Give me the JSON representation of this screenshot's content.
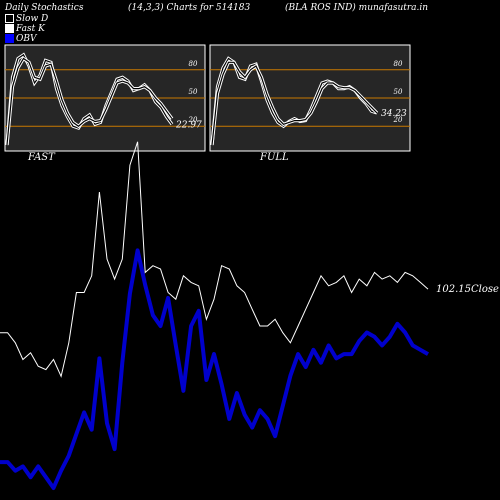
{
  "header": {
    "left": "Daily Stochastics",
    "center": "(14,3,3) Charts for 514183",
    "right": "(BLA ROS IND) munafasutra.in"
  },
  "legend": [
    {
      "label": "Slow  D",
      "color": "#000000"
    },
    {
      "label": "Fast K",
      "color": "#ffffff"
    },
    {
      "label": "OBV",
      "color": "#0000ff"
    }
  ],
  "colors": {
    "background": "#000000",
    "obv": "#0000cc",
    "close": "#ffffff",
    "panel_bg": "#262626",
    "level_line": "#c87800"
  },
  "chart_data": [
    {
      "type": "line",
      "title": "FAST",
      "ylim": [
        0,
        100
      ],
      "levels": [
        80,
        50,
        20
      ],
      "level_labels": [
        "80",
        "50",
        "20"
      ],
      "last_value_label": "22.97",
      "series": [
        {
          "values": [
            0,
            72,
            92,
            96,
            84,
            66,
            74,
            90,
            88,
            60,
            42,
            30,
            20,
            18,
            28,
            32,
            22,
            24,
            42,
            56,
            70,
            72,
            68,
            58,
            60,
            64,
            58,
            46,
            40,
            30,
            22
          ]
        },
        {
          "values": [
            0,
            62,
            82,
            92,
            88,
            72,
            70,
            84,
            86,
            68,
            48,
            34,
            24,
            20,
            25,
            28,
            25,
            26,
            38,
            52,
            66,
            68,
            66,
            60,
            60,
            62,
            58,
            50,
            44,
            36,
            28
          ]
        }
      ]
    },
    {
      "type": "line",
      "title": "FULL",
      "ylim": [
        0,
        100
      ],
      "levels": [
        80,
        50,
        20
      ],
      "level_labels": [
        "80",
        "50",
        "20"
      ],
      "last_value_label": "34.23",
      "series": [
        {
          "values": [
            0,
            62,
            82,
            92,
            88,
            72,
            70,
            84,
            86,
            68,
            48,
            34,
            24,
            20,
            25,
            28,
            25,
            26,
            38,
            52,
            66,
            68,
            66,
            60,
            60,
            62,
            58,
            50,
            44,
            36,
            34
          ]
        },
        {
          "values": [
            0,
            55,
            75,
            88,
            88,
            78,
            72,
            80,
            84,
            72,
            54,
            40,
            28,
            22,
            24,
            26,
            26,
            27,
            34,
            46,
            60,
            66,
            66,
            62,
            61,
            61,
            58,
            52,
            46,
            40,
            34
          ]
        }
      ]
    },
    {
      "type": "line",
      "title": "",
      "close_label": "102.15Close",
      "series": [
        {
          "name": "Close",
          "values": [
            38,
            38,
            35,
            30,
            32,
            28,
            27,
            30,
            25,
            35,
            50,
            50,
            55,
            80,
            60,
            54,
            60,
            88,
            95,
            56,
            58,
            57,
            50,
            48,
            55,
            53,
            52,
            42,
            48,
            58,
            57,
            52,
            50,
            45,
            40,
            40,
            42,
            38,
            35,
            40,
            45,
            50,
            55,
            52,
            53,
            55,
            50,
            54,
            52,
            56,
            54,
            55,
            53,
            56,
            55,
            53,
            51
          ]
        },
        {
          "name": "OBV",
          "values": [
            12,
            12,
            8,
            10,
            5,
            10,
            5,
            0,
            8,
            15,
            25,
            35,
            27,
            60,
            30,
            18,
            58,
            90,
            110,
            94,
            80,
            75,
            88,
            66,
            45,
            75,
            82,
            50,
            62,
            48,
            32,
            44,
            34,
            28,
            36,
            32,
            24,
            38,
            52,
            62,
            56,
            64,
            58,
            66,
            60,
            62,
            62,
            68,
            72,
            70,
            66,
            70,
            76,
            72,
            66,
            64,
            62
          ]
        }
      ]
    }
  ]
}
